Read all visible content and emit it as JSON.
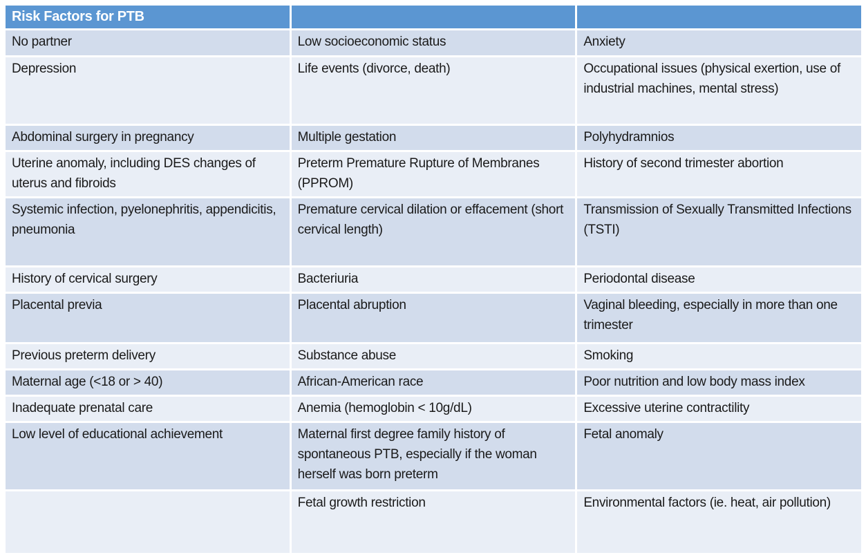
{
  "table": {
    "title": "Risk Factors for PTB",
    "header": [
      "Risk Factors for PTB",
      "",
      ""
    ],
    "rows": [
      [
        "No partner",
        "Low socioeconomic status",
        "Anxiety"
      ],
      [
        "Depression",
        "Life events (divorce, death)",
        "Occupational issues (physical exertion, use of industrial machines, mental stress)"
      ],
      [
        "Abdominal surgery in pregnancy",
        "Multiple gestation",
        "Polyhydramnios"
      ],
      [
        "Uterine anomaly, including DES changes of uterus and fibroids",
        "Preterm Premature Rupture of Membranes (PPROM)",
        "History of second trimester abortion"
      ],
      [
        "Systemic infection, pyelonephritis, appendicitis, pneumonia",
        "Premature cervical dilation or effacement (short cervical length)",
        "Transmission of Sexually Transmitted Infections (TSTI)"
      ],
      [
        "History of cervical surgery",
        "Bacteriuria",
        "Periodontal disease"
      ],
      [
        "Placental previa",
        "Placental abruption",
        "Vaginal bleeding, especially in more than one trimester"
      ],
      [
        "Previous preterm delivery",
        "Substance abuse",
        "Smoking"
      ],
      [
        "Maternal age (<18 or > 40)",
        "African-American race",
        "Poor nutrition and low body mass index"
      ],
      [
        "Inadequate prenatal care",
        "Anemia (hemoglobin < 10g/dL)",
        "Excessive uterine contractility"
      ],
      [
        "Low level of educational achievement",
        "Maternal first degree family history of spontaneous PTB, especially if the woman herself was born preterm",
        "Fetal anomaly"
      ],
      [
        "",
        "Fetal growth restriction",
        "Environmental factors (ie. heat, air pollution)"
      ]
    ],
    "colors": {
      "header_bg": "#5B96D2",
      "header_text": "#FFFFFF",
      "band_dark": "#D2DCEC",
      "band_light": "#E9EEF6",
      "body_text": "#1A1A1A",
      "page_bg": "#FFFFFF"
    }
  }
}
